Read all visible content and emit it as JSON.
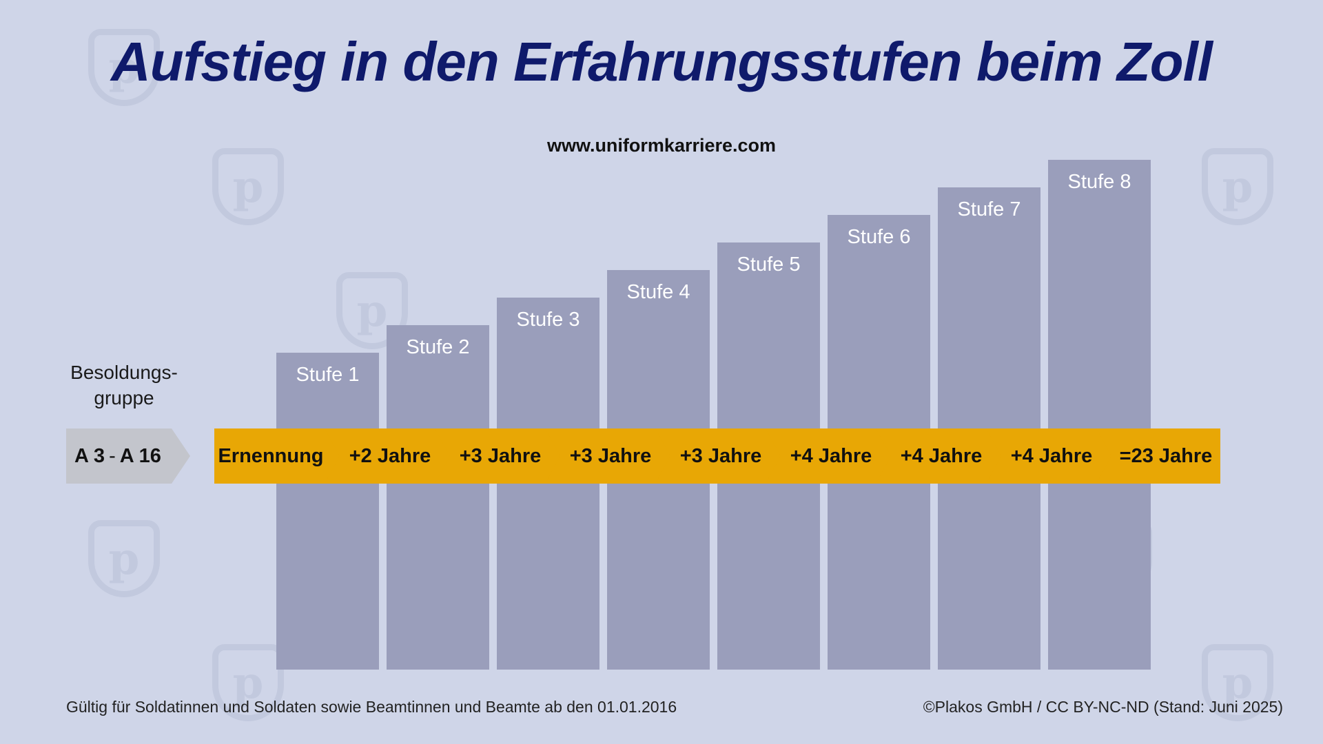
{
  "title": "Aufstieg in den Erfahrungsstufen beim Zoll",
  "website": "www.uniformkarriere.com",
  "group": {
    "label": "Besoldungs-\ngruppe",
    "value_a": "A 3",
    "separator": "-",
    "value_b": "A 16"
  },
  "stages": [
    "Stufe 1",
    "Stufe 2",
    "Stufe 3",
    "Stufe 4",
    "Stufe 5",
    "Stufe 6",
    "Stufe 7",
    "Stufe 8"
  ],
  "timeline": [
    "Ernennung",
    "+2 Jahre",
    "+3 Jahre",
    "+3 Jahre",
    "+3 Jahre",
    "+4 Jahre",
    "+4 Jahre",
    "+4 Jahre",
    "=23 Jahre"
  ],
  "footer": {
    "validity": "Gültig für Soldatinnen und Soldaten sowie Beamtinnen und Beamte ab den 01.01.2016",
    "copyright": "©Plakos GmbH / CC BY-NC-ND (Stand: Juni 2025)"
  },
  "colors": {
    "background": "#cfd5e8",
    "title": "#0f1a6b",
    "bar": "#9a9ebb",
    "timeline": "#e8a705",
    "group_box": "#c3c5cc"
  },
  "watermark_icon": "plakos-shield-icon"
}
